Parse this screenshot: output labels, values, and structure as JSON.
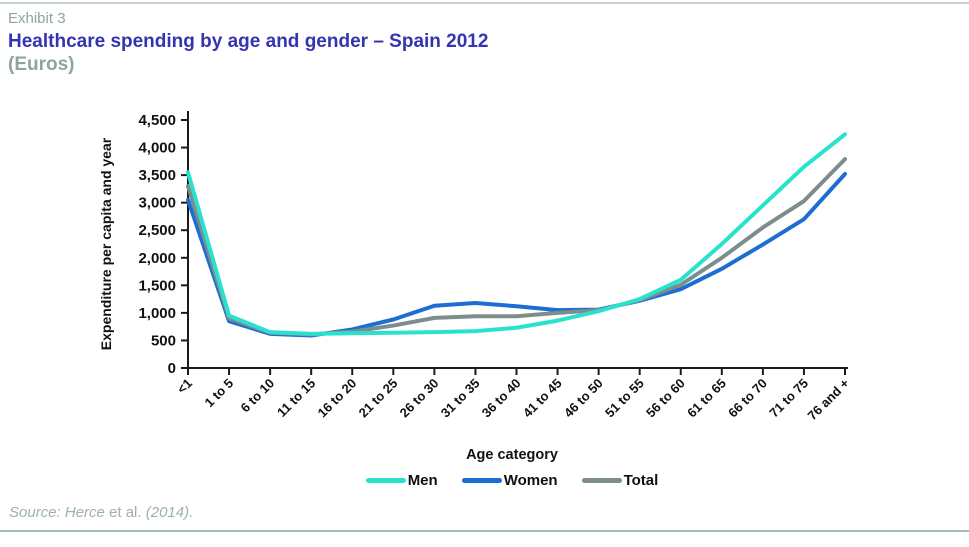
{
  "header": {
    "exhibit_label": "Exhibit 3",
    "title": "Healthcare spending by age and gender – Spain 2012",
    "subtitle": "(Euros)"
  },
  "footer": {
    "source_italic_1": "Source: Herce",
    "source_roman": " et al. ",
    "source_italic_2": "(2014)."
  },
  "colors": {
    "title_blue": "#3434b2",
    "muted_gray_text": "#8da49f",
    "axis_black": "#1a1a1a",
    "men_cyan": "#29e2cd",
    "women_blue": "#1c6ed2",
    "total_gray": "#7d8c8c"
  },
  "chart_data": {
    "type": "line",
    "title": "Healthcare spending by age and gender – Spain 2012 (Euros)",
    "xlabel": "Age category",
    "ylabel": "Expenditure per capita and year",
    "ylim": [
      0,
      4500
    ],
    "ytick_step": 500,
    "grid": false,
    "legend_position": "bottom",
    "axis_color": "#1a1a1a",
    "categories": [
      "<1",
      "1 to 5",
      "6 to 10",
      "11 to 15",
      "16 to 20",
      "21 to 25",
      "26 to 30",
      "31 to 35",
      "36 to 40",
      "41 to 45",
      "46 to 50",
      "51 to 55",
      "56 to 60",
      "61 to 65",
      "66 to 70",
      "71 to 75",
      "76 and +"
    ],
    "series": [
      {
        "name": "Men",
        "color": "#29e2cd",
        "values": [
          3550,
          950,
          650,
          620,
          630,
          640,
          650,
          670,
          730,
          860,
          1030,
          1250,
          1600,
          2250,
          2950,
          3650,
          4240
        ]
      },
      {
        "name": "Women",
        "color": "#1c6ed2",
        "values": [
          3050,
          850,
          620,
          590,
          700,
          880,
          1130,
          1180,
          1120,
          1050,
          1060,
          1220,
          1430,
          1800,
          2240,
          2700,
          3520
        ]
      },
      {
        "name": "Total",
        "color": "#7d8c8c",
        "values": [
          3300,
          900,
          640,
          610,
          660,
          770,
          910,
          940,
          940,
          1000,
          1050,
          1230,
          1510,
          2000,
          2550,
          3030,
          3790
        ]
      }
    ]
  }
}
